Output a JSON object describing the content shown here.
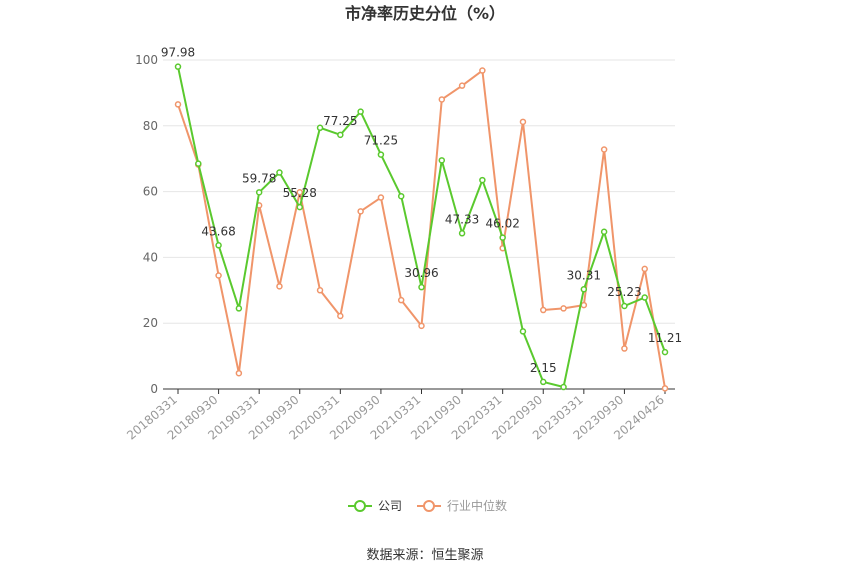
{
  "chart_data": {
    "type": "line",
    "title": "市净率历史分位（%）",
    "ylim": [
      0,
      100
    ],
    "yticks": [
      0,
      20,
      40,
      60,
      80,
      100
    ],
    "grid": true,
    "legend_placement": "bottom",
    "x": [
      "20180331",
      "20180630",
      "20180930",
      "20181231",
      "20190331",
      "20190630",
      "20190930",
      "20191231",
      "20200331",
      "20200630",
      "20200930",
      "20201231",
      "20210331",
      "20210630",
      "20210930",
      "20211231",
      "20220331",
      "20220630",
      "20220930",
      "20221231",
      "20230331",
      "20230630",
      "20230930",
      "20231231",
      "20240426"
    ],
    "xtick_labels": [
      "20180331",
      "20180930",
      "20190331",
      "20190930",
      "20200331",
      "20200930",
      "20210331",
      "20210930",
      "20220331",
      "20220930",
      "20230331",
      "20230930",
      "20240426"
    ],
    "series": [
      {
        "name": "公司",
        "color": "#5ac92e",
        "values": [
          97.98,
          68.5,
          43.68,
          24.5,
          59.78,
          65.8,
          55.28,
          79.4,
          77.25,
          84.3,
          71.25,
          58.6,
          30.96,
          69.5,
          47.33,
          63.5,
          46.02,
          17.5,
          2.15,
          0.6,
          30.31,
          47.8,
          25.23,
          27.8,
          11.21
        ],
        "labels": {
          "0": "97.98",
          "2": "43.68",
          "4": "59.78",
          "6": "55.28",
          "8": "77.25",
          "10": "71.25",
          "12": "30.96",
          "14": "47.33",
          "16": "46.02",
          "18": "2.15",
          "20": "30.31",
          "22": "25.23",
          "24": "11.21"
        }
      },
      {
        "name": "行业中位数",
        "color": "#f0956a",
        "values": [
          86.5,
          68.2,
          34.5,
          4.8,
          55.8,
          31.2,
          59.8,
          30.0,
          22.2,
          54.0,
          58.2,
          27.0,
          19.2,
          88.0,
          92.2,
          96.8,
          42.8,
          81.2,
          24.0,
          24.5,
          25.5,
          72.8,
          12.3,
          36.5,
          0.2
        ]
      }
    ]
  },
  "footer": {
    "source": "数据来源：恒生聚源"
  }
}
